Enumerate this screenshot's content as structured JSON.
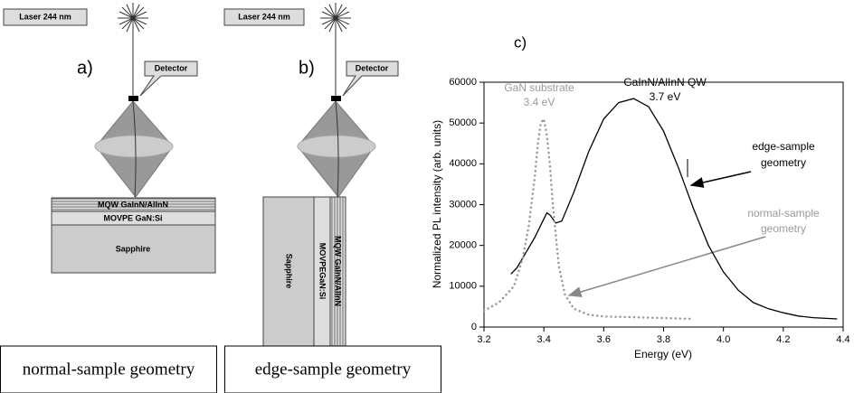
{
  "diagrams": {
    "a": {
      "label": "a)",
      "laser": "Laser 244 nm",
      "detector": "Detector",
      "layers": [
        "MQW GaInN/AlInN",
        "MOVPE GaN:Si",
        "Sapphire"
      ],
      "caption": "normal-sample geometry"
    },
    "b": {
      "label": "b)",
      "laser": "Laser 244 nm",
      "detector": "Detector",
      "layers": [
        "MQW GaInN/AlInN",
        "MOVPEGaN:Si",
        "Sapphire"
      ],
      "caption": "edge-sample geometry"
    }
  },
  "chart_data": {
    "type": "line",
    "title": "c)",
    "x_label": "Energy  (eV)",
    "y_label": "Normalized PL intensity  (arb. units)",
    "xlim": [
      3.2,
      4.4
    ],
    "xticks": [
      3.2,
      3.4,
      3.6,
      3.8,
      {
        "value": 4,
        "label": "4.0"
      },
      4.2,
      4.4
    ],
    "ylim": [
      0,
      60000
    ],
    "yticks": [
      0,
      10000,
      20000,
      30000,
      40000,
      50000,
      60000
    ],
    "series": [
      {
        "color": "#000000",
        "style": "solid",
        "x": [
          3.29,
          3.31,
          3.33,
          3.35,
          3.37,
          3.39,
          3.41,
          3.42,
          3.44,
          3.46,
          3.5,
          3.55,
          3.6,
          3.65,
          3.7,
          3.75,
          3.8,
          3.85,
          3.87,
          3.9,
          3.95,
          4.0,
          4.05,
          4.1,
          4.15,
          4.2,
          4.25,
          4.3,
          4.38
        ],
        "values": [
          13000,
          14500,
          17000,
          19500,
          22000,
          25000,
          28000,
          27500,
          25500,
          26000,
          33000,
          43000,
          51000,
          55000,
          56000,
          54000,
          48000,
          39000,
          35000,
          29000,
          20000,
          13500,
          9000,
          6000,
          4500,
          3500,
          2700,
          2300,
          2000
        ]
      },
      {
        "color": "#999999",
        "style": "dotted",
        "x": [
          3.2,
          3.25,
          3.3,
          3.33,
          3.35,
          3.37,
          3.38,
          3.39,
          3.4,
          3.41,
          3.42,
          3.43,
          3.45,
          3.47,
          3.5,
          3.55,
          3.6,
          3.7,
          3.8,
          3.9
        ],
        "values": [
          4000,
          6000,
          10000,
          17000,
          25000,
          37000,
          45000,
          50000,
          51000,
          47000,
          40000,
          30000,
          15000,
          8000,
          4500,
          3000,
          2600,
          2400,
          2200,
          2000
        ]
      }
    ],
    "annotations": [
      [
        "GaN substrate",
        "3.4 eV"
      ],
      [
        "GaInN/AlInN QW",
        "3.7 eV"
      ],
      [
        "edge-sample",
        "geometry"
      ],
      [
        "normal-sample",
        "geometry"
      ]
    ]
  }
}
